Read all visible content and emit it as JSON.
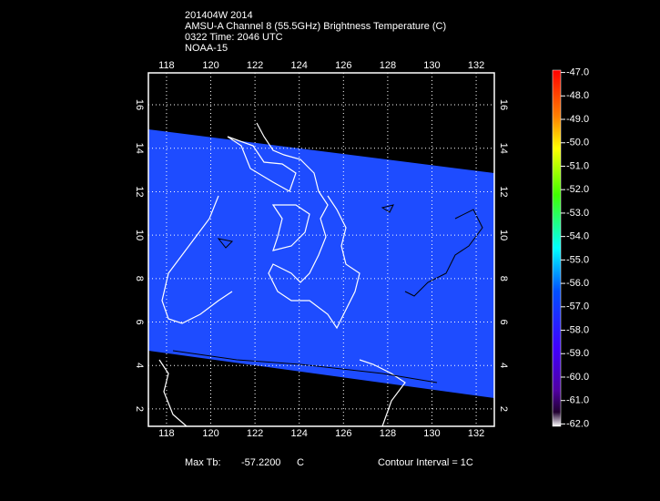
{
  "header": {
    "lines": [
      "201404W 2014",
      "AMSU-A Channel 8 (55.5GHz) Brightness Temperature (C)",
      "0322 Time: 2046 UTC",
      "NOAA-15"
    ]
  },
  "map": {
    "lonlim": [
      117.18,
      132.82
    ],
    "latlim": [
      1.2,
      17.47
    ],
    "lon_ticks": [
      118,
      120,
      122,
      124,
      126,
      128,
      130,
      132
    ],
    "lat_ticks": [
      2,
      4,
      6,
      8,
      10,
      12,
      14,
      16
    ],
    "grid": true
  },
  "colorbar": {
    "lim": [
      -62.1,
      -46.9
    ],
    "ticks": [
      {
        "value": -47,
        "label": "-47.0"
      },
      {
        "value": -48,
        "label": "-48.0"
      },
      {
        "value": -49,
        "label": "-49.0"
      },
      {
        "value": -50,
        "label": "-50.0"
      },
      {
        "value": -51,
        "label": "-51.0"
      },
      {
        "value": -52,
        "label": "-52.0"
      },
      {
        "value": -53,
        "label": "-53.0"
      },
      {
        "value": -54,
        "label": "-54.0"
      },
      {
        "value": -55,
        "label": "-55.0"
      },
      {
        "value": -56,
        "label": "-56.0"
      },
      {
        "value": -57,
        "label": "-57.0"
      },
      {
        "value": -58,
        "label": "-58.0"
      },
      {
        "value": -59,
        "label": "-59.0"
      },
      {
        "value": -60,
        "label": "-60.0"
      },
      {
        "value": -61,
        "label": "-61.0"
      },
      {
        "value": -62,
        "label": "-62.0"
      }
    ]
  },
  "footer": {
    "max_label": "Max Tb:",
    "max_value": "-57.2200",
    "unit": "C",
    "contour": "Contour Interval = 1C"
  }
}
